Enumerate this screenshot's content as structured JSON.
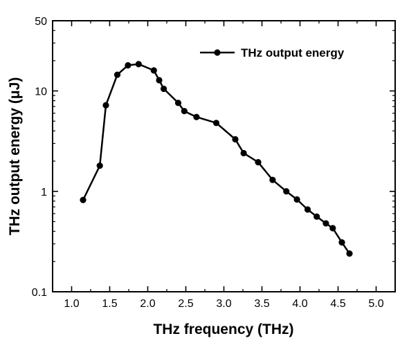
{
  "chart_data": {
    "type": "line",
    "xlabel": "THz frequency (THz)",
    "ylabel": "THz output energy (μJ)",
    "xlim": [
      0.75,
      5.25
    ],
    "ylim": [
      0.1,
      50
    ],
    "yscale": "log",
    "x_ticks": [
      "1.0",
      "1.5",
      "2.0",
      "2.5",
      "3.0",
      "3.5",
      "4.0",
      "4.5",
      "5.0"
    ],
    "y_ticks": [
      "0.1",
      "1",
      "10",
      "50"
    ],
    "legend_position": "top-right",
    "series": [
      {
        "name": "THz output energy",
        "x": [
          1.15,
          1.37,
          1.45,
          1.6,
          1.74,
          1.88,
          2.08,
          2.15,
          2.21,
          2.4,
          2.48,
          2.64,
          2.9,
          3.15,
          3.26,
          3.45,
          3.64,
          3.82,
          3.96,
          4.1,
          4.22,
          4.34,
          4.43,
          4.55,
          4.65
        ],
        "y": [
          0.82,
          1.8,
          7.2,
          14.5,
          18.0,
          18.5,
          16.0,
          12.8,
          10.5,
          7.6,
          6.3,
          5.5,
          4.8,
          3.3,
          2.4,
          1.95,
          1.3,
          1.0,
          0.83,
          0.66,
          0.56,
          0.48,
          0.43,
          0.31,
          0.24
        ]
      }
    ]
  }
}
